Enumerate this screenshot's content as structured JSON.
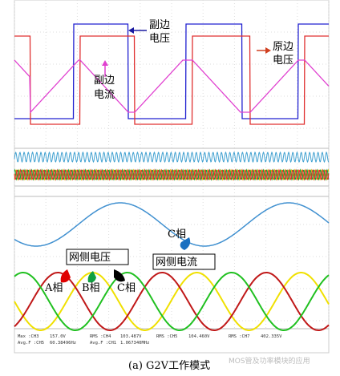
{
  "annotations": {
    "secondary_voltage": [
      "副边",
      "电压"
    ],
    "primary_voltage": [
      "原边",
      "电压"
    ],
    "secondary_current": [
      "副边",
      "电流"
    ],
    "grid_voltage": "网侧电压",
    "grid_current": "网侧电流",
    "phase_a": "A相",
    "phase_b": "B相",
    "phase_c": "C相",
    "current_phase": "C相"
  },
  "measurements": [
    [
      "Max  :CH3",
      "157.0V",
      "RMS  :CH4",
      "103.487V",
      "RMS  :CH5",
      "104.460V",
      "RMS  :CH7",
      "402.335V"
    ],
    [
      "Avg.F :CH5",
      "60.38496Hz",
      "Avg.F :CH1",
      "1.067340MHz"
    ]
  ],
  "watermark": "MOS管及功率模块的应用",
  "caption": "(a) G2V工作模式"
}
